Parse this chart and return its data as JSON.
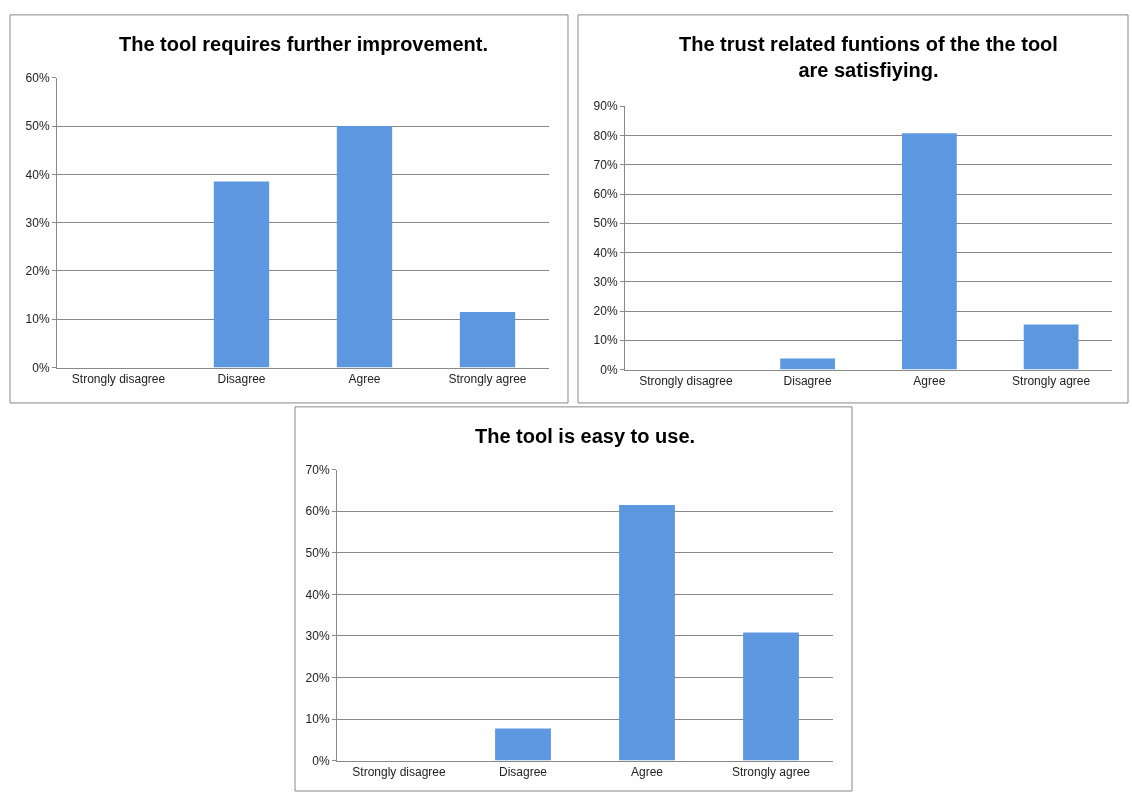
{
  "chart_data": [
    {
      "type": "bar",
      "title": "The tool requires further improvement.",
      "categories": [
        "Strongly disagree",
        "Disagree",
        "Agree",
        "Strongly agree"
      ],
      "values": [
        0,
        38.5,
        50,
        11.5
      ],
      "color": "#5d97e0",
      "ylim": [
        0,
        60
      ],
      "yticks": [
        {
          "value": 0,
          "label": "0%"
        },
        {
          "value": 10,
          "label": "10%"
        },
        {
          "value": 20,
          "label": "20%"
        },
        {
          "value": 30,
          "label": "30%"
        },
        {
          "value": 40,
          "label": "40%"
        },
        {
          "value": 50,
          "label": "50%"
        },
        {
          "value": 60,
          "label": "60%"
        }
      ],
      "grid": "y"
    },
    {
      "type": "bar",
      "title": "The trust related funtions of the the tool are satisfiying.",
      "categories": [
        "Strongly disagree",
        "Disagree",
        "Agree",
        "Strongly agree"
      ],
      "values": [
        0,
        3.8,
        80.8,
        15.4
      ],
      "color": "#5d97e0",
      "ylim": [
        0,
        90
      ],
      "yticks": [
        {
          "value": 0,
          "label": "0%"
        },
        {
          "value": 10,
          "label": "10%"
        },
        {
          "value": 20,
          "label": "20%"
        },
        {
          "value": 30,
          "label": "30%"
        },
        {
          "value": 40,
          "label": "40%"
        },
        {
          "value": 50,
          "label": "50%"
        },
        {
          "value": 60,
          "label": "60%"
        },
        {
          "value": 70,
          "label": "70%"
        },
        {
          "value": 80,
          "label": "80%"
        },
        {
          "value": 90,
          "label": "90%"
        }
      ],
      "grid": "y"
    },
    {
      "type": "bar",
      "title": "The tool is easy to use.",
      "categories": [
        "Strongly disagree",
        "Disagree",
        "Agree",
        "Strongly agree"
      ],
      "values": [
        0,
        7.7,
        61.5,
        30.8
      ],
      "color": "#5d97e0",
      "ylim": [
        0,
        70
      ],
      "yticks": [
        {
          "value": 0,
          "label": "0%"
        },
        {
          "value": 10,
          "label": "10%"
        },
        {
          "value": 20,
          "label": "20%"
        },
        {
          "value": 30,
          "label": "30%"
        },
        {
          "value": 40,
          "label": "40%"
        },
        {
          "value": 50,
          "label": "50%"
        },
        {
          "value": 60,
          "label": "60%"
        },
        {
          "value": 70,
          "label": "70%"
        }
      ],
      "grid": "y"
    }
  ]
}
